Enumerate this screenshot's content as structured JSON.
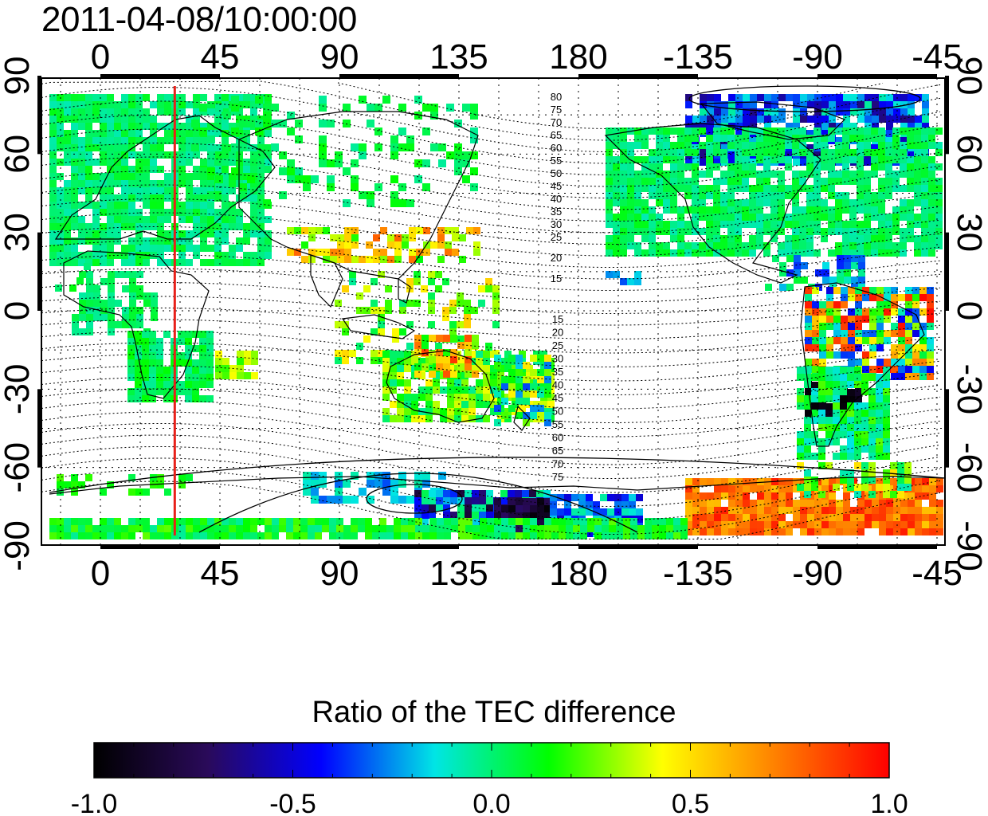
{
  "timestamp": "2011-04-08/10:00:00",
  "map": {
    "x_ticks_top": [
      "0",
      "45",
      "90",
      "135",
      "180",
      "-135",
      "-90",
      "-45"
    ],
    "x_ticks_bottom": [
      "0",
      "45",
      "90",
      "135",
      "180",
      "-135",
      "-90",
      "-45"
    ],
    "y_ticks_left": [
      "90",
      "60",
      "30",
      "0",
      "-30",
      "-60",
      "-90"
    ],
    "y_ticks_right": [
      "90",
      "60",
      "30",
      "0",
      "-30",
      "-60",
      "-90"
    ],
    "contour_labels_north": [
      "80",
      "75",
      "70",
      "65",
      "60",
      "55",
      "50",
      "45",
      "40",
      "35",
      "30",
      "25",
      "20",
      "15"
    ],
    "contour_labels_south": [
      "15",
      "20",
      "25",
      "30",
      "35",
      "40",
      "45",
      "50",
      "55",
      "60",
      "65",
      "70",
      "75"
    ],
    "marker_line_longitude": 28,
    "marker_line_color": "#e8201a"
  },
  "colorbar": {
    "title": "Ratio of the TEC difference",
    "tick_labels": [
      "-1.0",
      "-0.5",
      "0.0",
      "0.5",
      "1.0"
    ],
    "range": [
      -1.0,
      1.0
    ],
    "colors": [
      "#000000",
      "#2a0a5a",
      "#0000ff",
      "#00e5e5",
      "#00ff00",
      "#ffff00",
      "#ff8000",
      "#ff0000"
    ]
  }
}
